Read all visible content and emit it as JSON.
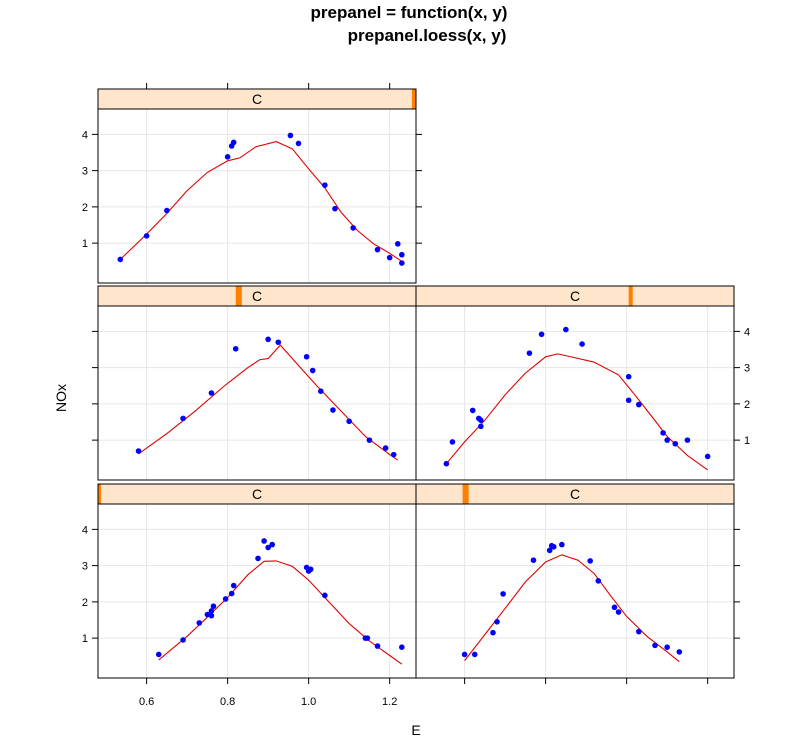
{
  "chart_data": {
    "type": "scatter",
    "title_line1": "prepanel = function(x, y)",
    "title_line2": "prepanel.loess(x, y)",
    "xlabel": "E",
    "ylabel": "NOx",
    "xlim": [
      0.48,
      1.265
    ],
    "ylim": [
      -0.1,
      4.7
    ],
    "x_ticks": [
      "0.6",
      "0.8",
      "1.0",
      "1.2"
    ],
    "x_tick_values": [
      0.6,
      0.8,
      1.0,
      1.2
    ],
    "y_ticks": [
      "1",
      "2",
      "3",
      "4"
    ],
    "y_tick_values": [
      1,
      2,
      3,
      4
    ],
    "grid": true,
    "point_color": "#0000ff",
    "line_color": "#e00000",
    "strip_color": "#ffe5cc",
    "strip_marker_color": "#ff7f00",
    "panels": [
      {
        "strip": "C",
        "strip_range": [
          1.255,
          1.265
        ],
        "points": [
          {
            "x": 0.535,
            "y": 0.55
          },
          {
            "x": 0.6,
            "y": 1.2
          },
          {
            "x": 0.65,
            "y": 1.9
          },
          {
            "x": 0.8,
            "y": 3.38
          },
          {
            "x": 0.81,
            "y": 3.68
          },
          {
            "x": 0.815,
            "y": 3.78
          },
          {
            "x": 0.955,
            "y": 3.97
          },
          {
            "x": 0.975,
            "y": 3.75
          },
          {
            "x": 1.04,
            "y": 2.6
          },
          {
            "x": 1.065,
            "y": 1.95
          },
          {
            "x": 1.11,
            "y": 1.42
          },
          {
            "x": 1.17,
            "y": 0.82
          },
          {
            "x": 1.2,
            "y": 0.6
          },
          {
            "x": 1.22,
            "y": 0.98
          },
          {
            "x": 1.23,
            "y": 0.68
          },
          {
            "x": 1.23,
            "y": 0.45
          }
        ],
        "loess": [
          {
            "x": 0.535,
            "y": 0.55
          },
          {
            "x": 0.6,
            "y": 1.25
          },
          {
            "x": 0.65,
            "y": 1.82
          },
          {
            "x": 0.7,
            "y": 2.45
          },
          {
            "x": 0.75,
            "y": 2.95
          },
          {
            "x": 0.8,
            "y": 3.27
          },
          {
            "x": 0.83,
            "y": 3.35
          },
          {
            "x": 0.87,
            "y": 3.66
          },
          {
            "x": 0.92,
            "y": 3.8
          },
          {
            "x": 0.96,
            "y": 3.6
          },
          {
            "x": 1.0,
            "y": 3.05
          },
          {
            "x": 1.04,
            "y": 2.52
          },
          {
            "x": 1.08,
            "y": 1.85
          },
          {
            "x": 1.12,
            "y": 1.35
          },
          {
            "x": 1.16,
            "y": 0.98
          },
          {
            "x": 1.2,
            "y": 0.72
          },
          {
            "x": 1.23,
            "y": 0.5
          }
        ]
      },
      {
        "strip": "C",
        "strip_range": [
          0.82,
          0.835
        ],
        "points": [
          {
            "x": 0.58,
            "y": 0.7
          },
          {
            "x": 0.69,
            "y": 1.6
          },
          {
            "x": 0.76,
            "y": 2.3
          },
          {
            "x": 0.82,
            "y": 3.52
          },
          {
            "x": 0.9,
            "y": 3.78
          },
          {
            "x": 0.925,
            "y": 3.7
          },
          {
            "x": 0.995,
            "y": 3.3
          },
          {
            "x": 1.01,
            "y": 2.92
          },
          {
            "x": 1.03,
            "y": 2.35
          },
          {
            "x": 1.06,
            "y": 1.83
          },
          {
            "x": 1.1,
            "y": 1.52
          },
          {
            "x": 1.15,
            "y": 1.0
          },
          {
            "x": 1.19,
            "y": 0.78
          },
          {
            "x": 1.21,
            "y": 0.6
          }
        ],
        "loess": [
          {
            "x": 0.58,
            "y": 0.62
          },
          {
            "x": 0.65,
            "y": 1.18
          },
          {
            "x": 0.72,
            "y": 1.8
          },
          {
            "x": 0.79,
            "y": 2.48
          },
          {
            "x": 0.85,
            "y": 3.0
          },
          {
            "x": 0.88,
            "y": 3.22
          },
          {
            "x": 0.9,
            "y": 3.25
          },
          {
            "x": 0.93,
            "y": 3.62
          },
          {
            "x": 0.97,
            "y": 3.12
          },
          {
            "x": 1.02,
            "y": 2.5
          },
          {
            "x": 1.08,
            "y": 1.8
          },
          {
            "x": 1.14,
            "y": 1.1
          },
          {
            "x": 1.2,
            "y": 0.6
          },
          {
            "x": 1.22,
            "y": 0.45
          }
        ]
      },
      {
        "strip": "C",
        "strip_range": [
          1.005,
          1.015
        ],
        "points": [
          {
            "x": 0.555,
            "y": 0.35
          },
          {
            "x": 0.57,
            "y": 0.95
          },
          {
            "x": 0.62,
            "y": 1.82
          },
          {
            "x": 0.635,
            "y": 1.6
          },
          {
            "x": 0.64,
            "y": 1.38
          },
          {
            "x": 0.64,
            "y": 1.55
          },
          {
            "x": 0.76,
            "y": 3.4
          },
          {
            "x": 0.79,
            "y": 3.92
          },
          {
            "x": 0.85,
            "y": 4.05
          },
          {
            "x": 0.89,
            "y": 3.65
          },
          {
            "x": 1.005,
            "y": 2.75
          },
          {
            "x": 1.005,
            "y": 2.1
          },
          {
            "x": 1.03,
            "y": 1.98
          },
          {
            "x": 1.09,
            "y": 1.2
          },
          {
            "x": 1.1,
            "y": 1.0
          },
          {
            "x": 1.12,
            "y": 0.9
          },
          {
            "x": 1.15,
            "y": 1.0
          },
          {
            "x": 1.2,
            "y": 0.55
          }
        ],
        "loess": [
          {
            "x": 0.555,
            "y": 0.35
          },
          {
            "x": 0.6,
            "y": 0.95
          },
          {
            "x": 0.65,
            "y": 1.55
          },
          {
            "x": 0.7,
            "y": 2.25
          },
          {
            "x": 0.75,
            "y": 2.85
          },
          {
            "x": 0.8,
            "y": 3.3
          },
          {
            "x": 0.83,
            "y": 3.38
          },
          {
            "x": 0.87,
            "y": 3.28
          },
          {
            "x": 0.92,
            "y": 3.15
          },
          {
            "x": 0.98,
            "y": 2.8
          },
          {
            "x": 1.02,
            "y": 2.25
          },
          {
            "x": 1.06,
            "y": 1.68
          },
          {
            "x": 1.1,
            "y": 1.1
          },
          {
            "x": 1.15,
            "y": 0.58
          },
          {
            "x": 1.2,
            "y": 0.18
          }
        ]
      },
      {
        "strip": "C",
        "strip_range": [
          0.48,
          0.485
        ],
        "points": [
          {
            "x": 0.63,
            "y": 0.55
          },
          {
            "x": 0.69,
            "y": 0.95
          },
          {
            "x": 0.73,
            "y": 1.42
          },
          {
            "x": 0.75,
            "y": 1.65
          },
          {
            "x": 0.76,
            "y": 1.62
          },
          {
            "x": 0.76,
            "y": 1.75
          },
          {
            "x": 0.765,
            "y": 1.88
          },
          {
            "x": 0.795,
            "y": 2.08
          },
          {
            "x": 0.81,
            "y": 2.23
          },
          {
            "x": 0.815,
            "y": 2.45
          },
          {
            "x": 0.875,
            "y": 3.2
          },
          {
            "x": 0.89,
            "y": 3.68
          },
          {
            "x": 0.9,
            "y": 3.5
          },
          {
            "x": 0.91,
            "y": 3.58
          },
          {
            "x": 0.995,
            "y": 2.95
          },
          {
            "x": 1.0,
            "y": 2.85
          },
          {
            "x": 1.005,
            "y": 2.9
          },
          {
            "x": 1.04,
            "y": 2.18
          },
          {
            "x": 1.14,
            "y": 1.0
          },
          {
            "x": 1.145,
            "y": 1.0
          },
          {
            "x": 1.17,
            "y": 0.78
          },
          {
            "x": 1.23,
            "y": 0.75
          }
        ],
        "loess": [
          {
            "x": 0.63,
            "y": 0.4
          },
          {
            "x": 0.7,
            "y": 1.05
          },
          {
            "x": 0.75,
            "y": 1.58
          },
          {
            "x": 0.8,
            "y": 2.12
          },
          {
            "x": 0.85,
            "y": 2.75
          },
          {
            "x": 0.89,
            "y": 3.12
          },
          {
            "x": 0.92,
            "y": 3.13
          },
          {
            "x": 0.96,
            "y": 2.98
          },
          {
            "x": 1.0,
            "y": 2.6
          },
          {
            "x": 1.05,
            "y": 2.0
          },
          {
            "x": 1.1,
            "y": 1.4
          },
          {
            "x": 1.15,
            "y": 0.92
          },
          {
            "x": 1.2,
            "y": 0.52
          },
          {
            "x": 1.23,
            "y": 0.28
          }
        ]
      },
      {
        "strip": "C",
        "strip_range": [
          0.595,
          0.61
        ],
        "points": [
          {
            "x": 0.6,
            "y": 0.55
          },
          {
            "x": 0.625,
            "y": 0.55
          },
          {
            "x": 0.67,
            "y": 1.15
          },
          {
            "x": 0.68,
            "y": 1.45
          },
          {
            "x": 0.695,
            "y": 2.22
          },
          {
            "x": 0.77,
            "y": 3.15
          },
          {
            "x": 0.81,
            "y": 3.42
          },
          {
            "x": 0.815,
            "y": 3.55
          },
          {
            "x": 0.82,
            "y": 3.52
          },
          {
            "x": 0.84,
            "y": 3.58
          },
          {
            "x": 0.91,
            "y": 3.13
          },
          {
            "x": 0.93,
            "y": 2.58
          },
          {
            "x": 0.97,
            "y": 1.85
          },
          {
            "x": 0.98,
            "y": 1.72
          },
          {
            "x": 1.03,
            "y": 1.18
          },
          {
            "x": 1.07,
            "y": 0.8
          },
          {
            "x": 1.1,
            "y": 0.75
          },
          {
            "x": 1.13,
            "y": 0.62
          }
        ],
        "loess": [
          {
            "x": 0.6,
            "y": 0.38
          },
          {
            "x": 0.65,
            "y": 1.1
          },
          {
            "x": 0.7,
            "y": 1.82
          },
          {
            "x": 0.75,
            "y": 2.55
          },
          {
            "x": 0.8,
            "y": 3.1
          },
          {
            "x": 0.84,
            "y": 3.3
          },
          {
            "x": 0.88,
            "y": 3.15
          },
          {
            "x": 0.92,
            "y": 2.78
          },
          {
            "x": 0.96,
            "y": 2.18
          },
          {
            "x": 1.0,
            "y": 1.6
          },
          {
            "x": 1.05,
            "y": 1.05
          },
          {
            "x": 1.1,
            "y": 0.62
          },
          {
            "x": 1.13,
            "y": 0.35
          }
        ]
      }
    ]
  }
}
